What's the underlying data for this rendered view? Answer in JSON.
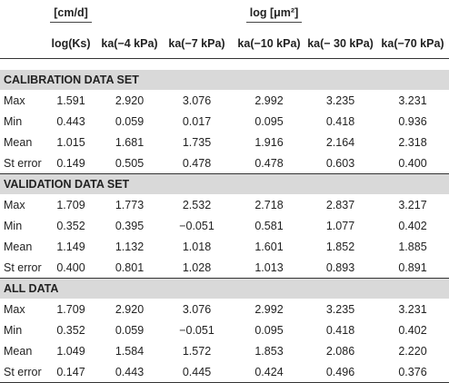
{
  "header": {
    "unit_ks": "[cm/d]",
    "unit_ka": "log [μm²]",
    "columns": [
      "log(Ks)",
      "ka(−4 kPa)",
      "ka(−7 kPa)",
      "ka(−10 kPa)",
      "ka(− 30 kPa)",
      "ka(−70 kPa)"
    ]
  },
  "sections": [
    {
      "title": "CALIBRATION DATA SET",
      "rows": [
        {
          "label": "Max",
          "values": [
            "1.591",
            "2.920",
            "3.076",
            "2.992",
            "3.235",
            "3.231"
          ]
        },
        {
          "label": "Min",
          "values": [
            "0.443",
            "0.059",
            "0.017",
            "0.095",
            "0.418",
            "0.936"
          ]
        },
        {
          "label": "Mean",
          "values": [
            "1.015",
            "1.681",
            "1.735",
            "1.916",
            "2.164",
            "2.318"
          ]
        },
        {
          "label": "St error",
          "values": [
            "0.149",
            "0.505",
            "0.478",
            "0.478",
            "0.603",
            "0.400"
          ]
        }
      ]
    },
    {
      "title": "VALIDATION DATA SET",
      "rows": [
        {
          "label": "Max",
          "values": [
            "1.709",
            "1.773",
            "2.532",
            "2.718",
            "2.837",
            "3.217"
          ]
        },
        {
          "label": "Min",
          "values": [
            "0.352",
            "0.395",
            "−0.051",
            "0.581",
            "1.077",
            "0.402"
          ]
        },
        {
          "label": "Mean",
          "values": [
            "1.149",
            "1.132",
            "1.018",
            "1.601",
            "1.852",
            "1.885"
          ]
        },
        {
          "label": "St error",
          "values": [
            "0.400",
            "0.801",
            "1.028",
            "1.013",
            "0.893",
            "0.891"
          ]
        }
      ]
    },
    {
      "title": "ALL DATA",
      "rows": [
        {
          "label": "Max",
          "values": [
            "1.709",
            "2.920",
            "3.076",
            "2.992",
            "3.235",
            "3.231"
          ]
        },
        {
          "label": "Min",
          "values": [
            "0.352",
            "0.059",
            "−0.051",
            "0.095",
            "0.418",
            "0.402"
          ]
        },
        {
          "label": "Mean",
          "values": [
            "1.049",
            "1.584",
            "1.572",
            "1.853",
            "2.086",
            "2.220"
          ]
        },
        {
          "label": "St error",
          "values": [
            "0.147",
            "0.443",
            "0.445",
            "0.424",
            "0.496",
            "0.376"
          ]
        }
      ]
    }
  ]
}
